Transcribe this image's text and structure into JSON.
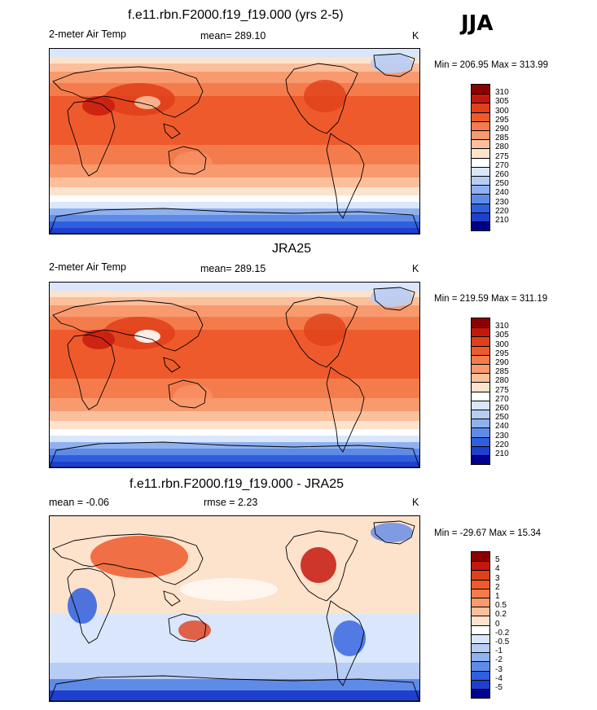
{
  "season": "JJA",
  "panels": [
    {
      "title": "f.e11.rbn.F2000.f19_f19.000 (yrs 2-5)",
      "left_label": "2-meter Air Temp",
      "stat_label": "mean= 289.10",
      "stat2_label": "",
      "units": "K",
      "minmax": "Min = 206.95 Max = 313.99",
      "kind": "abs",
      "colorbar": {
        "labels": [
          "310",
          "305",
          "300",
          "295",
          "290",
          "285",
          "280",
          "275",
          "270",
          "260",
          "250",
          "240",
          "230",
          "220",
          "210"
        ],
        "colors": [
          "#8b0000",
          "#c4180c",
          "#e0401a",
          "#ef5a2c",
          "#f47c4c",
          "#f89a6e",
          "#fbbf9b",
          "#fde2cc",
          "#ffffff",
          "#d9e6fb",
          "#b7cdf6",
          "#8fb1f0",
          "#5f8be8",
          "#2f5fde",
          "#1e3fcf",
          "#00008b"
        ]
      }
    },
    {
      "title": "JRA25",
      "left_label": "2-meter Air Temp",
      "stat_label": "mean= 289.15",
      "stat2_label": "",
      "units": "K",
      "minmax": "Min = 219.59 Max = 311.19",
      "kind": "abs",
      "colorbar": {
        "labels": [
          "310",
          "305",
          "300",
          "295",
          "290",
          "285",
          "280",
          "275",
          "270",
          "260",
          "250",
          "240",
          "230",
          "220",
          "210"
        ],
        "colors": [
          "#8b0000",
          "#c4180c",
          "#e0401a",
          "#ef5a2c",
          "#f47c4c",
          "#f89a6e",
          "#fbbf9b",
          "#fde2cc",
          "#ffffff",
          "#d9e6fb",
          "#b7cdf6",
          "#8fb1f0",
          "#5f8be8",
          "#2f5fde",
          "#1e3fcf",
          "#00008b"
        ]
      }
    },
    {
      "title": "f.e11.rbn.F2000.f19_f19.000 - JRA25",
      "left_label": "mean =  -0.06",
      "stat_label": "",
      "stat2_label": "rmse =   2.23",
      "units": "K",
      "minmax": "Min = -29.67 Max =  15.34",
      "kind": "diff",
      "colorbar": {
        "labels": [
          "5",
          "4",
          "3",
          "2",
          "1",
          "0.5",
          "0.2",
          "0",
          "-0.2",
          "-0.5",
          "-1",
          "-2",
          "-3",
          "-4",
          "-5"
        ],
        "colors": [
          "#8b0000",
          "#c4180c",
          "#e0401a",
          "#ef5a2c",
          "#f47c4c",
          "#f89a6e",
          "#fbbf9b",
          "#fde2cc",
          "#ffffff",
          "#d9e6fb",
          "#b7cdf6",
          "#8fb1f0",
          "#5f8be8",
          "#2f5fde",
          "#1e3fcf",
          "#00008b"
        ]
      }
    }
  ]
}
